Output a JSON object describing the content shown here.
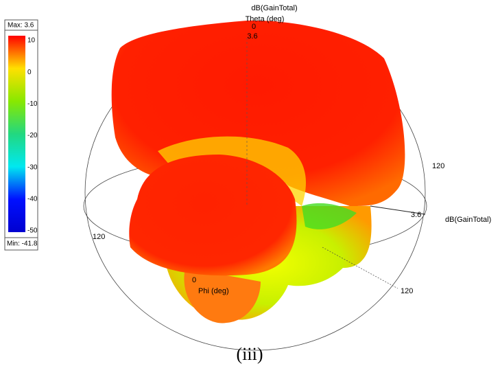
{
  "plot": {
    "quantity_label": "dB(GainTotal)",
    "theta_label": "Theta (deg)",
    "theta_zero": "0",
    "top_value": "3.6",
    "right_angle": "120",
    "right_value": "3.6",
    "right_quantity": "dB(GainTotal)",
    "left_angle": "120",
    "phi_zero": "0",
    "phi_label": "Phi (deg)",
    "bottom_angle": "120"
  },
  "legend": {
    "max": "Max: 3.6",
    "min": "Min: -41.8",
    "ticks": [
      10,
      0,
      -10,
      -20,
      -30,
      -40,
      -50
    ],
    "colors": [
      "#ff0000",
      "#ffe000",
      "#88e800",
      "#22d880",
      "#00e8f0",
      "#0010ff",
      "#0000d0"
    ]
  },
  "caption": "(iii)"
}
